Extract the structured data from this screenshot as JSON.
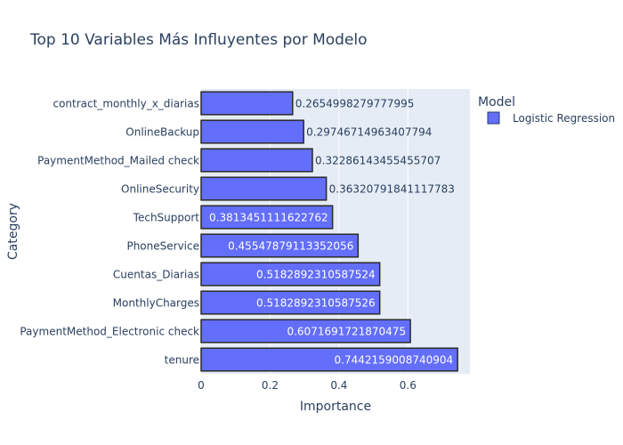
{
  "chart_data": {
    "type": "bar",
    "orientation": "horizontal",
    "title": "Top 10 Variables Más Influyentes por Modelo",
    "xlabel": "Importance",
    "ylabel": "Category",
    "xlim": [
      0,
      0.78
    ],
    "xticks": [
      0,
      0.2,
      0.4,
      0.6
    ],
    "xtick_labels": [
      "0",
      "0.2",
      "0.4",
      "0.6"
    ],
    "grid": true,
    "legend": {
      "title": "Model",
      "placement": "top-right"
    },
    "categories": [
      "contract_monthly_x_diarias",
      "OnlineBackup",
      "PaymentMethod_Mailed check",
      "OnlineSecurity",
      "TechSupport",
      "PhoneService",
      "Cuentas_Diarias",
      "MonthlyCharges",
      "PaymentMethod_Electronic check",
      "tenure"
    ],
    "series": [
      {
        "name": "Logistic Regression",
        "color": "#636efa",
        "values": [
          0.2654998279777995,
          0.29746714963407794,
          0.32286143455455707,
          0.36320791841117783,
          0.3813451111622762,
          0.4554787911335206,
          0.5182892310587524,
          0.5182892310587526,
          0.6071691721870475,
          0.7442159008740904
        ],
        "labels": [
          "0.2654998279777995",
          "0.29746714963407794",
          "0.32286143455455707",
          "0.36320791841117783",
          "0.3813451111622762",
          "0.45547879113352056",
          "0.5182892310587524",
          "0.5182892310587526",
          "0.6071691721870475",
          "0.7442159008740904"
        ]
      }
    ]
  }
}
